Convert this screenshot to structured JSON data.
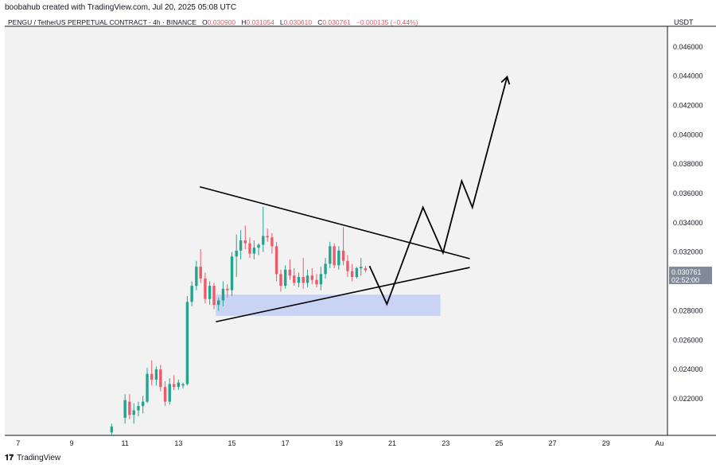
{
  "header": {
    "attribution": "boobahub created with TradingView.com, Jul 20, 2025 05:08 UTC"
  },
  "legend": {
    "symbol": "PENGU / TetherUS PERPETUAL CONTRACT · 4h · BINANCE",
    "o_label": "O",
    "o_value": "0.030900",
    "h_label": "H",
    "h_value": "0.031054",
    "l_label": "L",
    "l_value": "0.030610",
    "c_label": "C",
    "c_value": "0.030761",
    "change": "−0.000135 (−0.44%)"
  },
  "currency": "USDT",
  "footer": {
    "brand": "TradingView"
  },
  "last_price_tag": {
    "price": "0.030761",
    "countdown": "02:52:00"
  },
  "colors": {
    "up": "#22a58f",
    "down": "#ef5a6a",
    "zone": "#c9d4f5",
    "plot_bg": "#f2f2f2",
    "drawing": "#000000"
  },
  "chart_data": {
    "type": "candlestick",
    "title": "PENGU / TetherUS PERPETUAL CONTRACT · 4h · BINANCE",
    "ylim": [
      0.0195,
      0.0474
    ],
    "y_ticks": [
      "0.022000",
      "0.024000",
      "0.026000",
      "0.028000",
      "0.030000",
      "0.032000",
      "0.034000",
      "0.036000",
      "0.038000",
      "0.040000",
      "0.042000",
      "0.044000",
      "0.046000"
    ],
    "y_tick_values": [
      0.022,
      0.024,
      0.026,
      0.028,
      0.03,
      0.032,
      0.034,
      0.036,
      0.038,
      0.04,
      0.042,
      0.044,
      0.046
    ],
    "x_ticks": [
      {
        "label": "7",
        "day": 7
      },
      {
        "label": "9",
        "day": 9
      },
      {
        "label": "11",
        "day": 11
      },
      {
        "label": "13",
        "day": 13
      },
      {
        "label": "15",
        "day": 15
      },
      {
        "label": "17",
        "day": 17
      },
      {
        "label": "19",
        "day": 19
      },
      {
        "label": "21",
        "day": 21
      },
      {
        "label": "23",
        "day": 23
      },
      {
        "label": "25",
        "day": 25
      },
      {
        "label": "27",
        "day": 27
      },
      {
        "label": "29",
        "day": 29
      },
      {
        "label": "Au",
        "day": 31
      }
    ],
    "xlim_days": [
      6.5,
      31.3
    ],
    "candles": [
      {
        "d": 10.5,
        "o": 0.0197,
        "h": 0.0203,
        "l": 0.0195,
        "c": 0.0201
      },
      {
        "d": 11.0,
        "o": 0.0207,
        "h": 0.0223,
        "l": 0.0203,
        "c": 0.0219
      },
      {
        "d": 11.17,
        "o": 0.0218,
        "h": 0.0223,
        "l": 0.0206,
        "c": 0.0209
      },
      {
        "d": 11.33,
        "o": 0.0209,
        "h": 0.0217,
        "l": 0.0203,
        "c": 0.0212
      },
      {
        "d": 11.5,
        "o": 0.0212,
        "h": 0.0218,
        "l": 0.0208,
        "c": 0.0215
      },
      {
        "d": 11.67,
        "o": 0.0215,
        "h": 0.0222,
        "l": 0.021,
        "c": 0.0218
      },
      {
        "d": 11.83,
        "o": 0.0218,
        "h": 0.0241,
        "l": 0.0217,
        "c": 0.0237
      },
      {
        "d": 12.0,
        "o": 0.0237,
        "h": 0.0246,
        "l": 0.0229,
        "c": 0.0233
      },
      {
        "d": 12.17,
        "o": 0.0233,
        "h": 0.0242,
        "l": 0.0229,
        "c": 0.024
      },
      {
        "d": 12.33,
        "o": 0.024,
        "h": 0.0243,
        "l": 0.0225,
        "c": 0.0228
      },
      {
        "d": 12.5,
        "o": 0.0228,
        "h": 0.0232,
        "l": 0.0215,
        "c": 0.0218
      },
      {
        "d": 12.67,
        "o": 0.0218,
        "h": 0.0234,
        "l": 0.0216,
        "c": 0.023
      },
      {
        "d": 12.83,
        "o": 0.023,
        "h": 0.0236,
        "l": 0.0226,
        "c": 0.0228
      },
      {
        "d": 13.0,
        "o": 0.0228,
        "h": 0.0233,
        "l": 0.0226,
        "c": 0.0231
      },
      {
        "d": 13.17,
        "o": 0.0229,
        "h": 0.0231,
        "l": 0.0227,
        "c": 0.023
      },
      {
        "d": 13.33,
        "o": 0.023,
        "h": 0.029,
        "l": 0.0229,
        "c": 0.0286
      },
      {
        "d": 13.5,
        "o": 0.0286,
        "h": 0.03,
        "l": 0.0283,
        "c": 0.0297
      },
      {
        "d": 13.67,
        "o": 0.0297,
        "h": 0.0314,
        "l": 0.0294,
        "c": 0.031
      },
      {
        "d": 13.83,
        "o": 0.031,
        "h": 0.0322,
        "l": 0.0299,
        "c": 0.0302
      },
      {
        "d": 14.0,
        "o": 0.0302,
        "h": 0.0306,
        "l": 0.0285,
        "c": 0.0288
      },
      {
        "d": 14.17,
        "o": 0.0288,
        "h": 0.03,
        "l": 0.0284,
        "c": 0.0297
      },
      {
        "d": 14.33,
        "o": 0.0297,
        "h": 0.0299,
        "l": 0.0281,
        "c": 0.0284
      },
      {
        "d": 14.5,
        "o": 0.0284,
        "h": 0.0289,
        "l": 0.028,
        "c": 0.0287
      },
      {
        "d": 14.67,
        "o": 0.0287,
        "h": 0.03,
        "l": 0.0283,
        "c": 0.0295
      },
      {
        "d": 14.83,
        "o": 0.0295,
        "h": 0.0298,
        "l": 0.0289,
        "c": 0.0294
      },
      {
        "d": 15.0,
        "o": 0.0294,
        "h": 0.032,
        "l": 0.029,
        "c": 0.0317
      },
      {
        "d": 15.17,
        "o": 0.0317,
        "h": 0.0332,
        "l": 0.0303,
        "c": 0.0321
      },
      {
        "d": 15.33,
        "o": 0.0321,
        "h": 0.0335,
        "l": 0.0315,
        "c": 0.0328
      },
      {
        "d": 15.5,
        "o": 0.0328,
        "h": 0.0338,
        "l": 0.0322,
        "c": 0.0326
      },
      {
        "d": 15.67,
        "o": 0.0326,
        "h": 0.033,
        "l": 0.0316,
        "c": 0.0319
      },
      {
        "d": 15.83,
        "o": 0.0319,
        "h": 0.0328,
        "l": 0.0315,
        "c": 0.0323
      },
      {
        "d": 16.0,
        "o": 0.0323,
        "h": 0.0326,
        "l": 0.0318,
        "c": 0.0325
      },
      {
        "d": 16.17,
        "o": 0.0325,
        "h": 0.0351,
        "l": 0.032,
        "c": 0.0331
      },
      {
        "d": 16.33,
        "o": 0.0331,
        "h": 0.0336,
        "l": 0.0327,
        "c": 0.033
      },
      {
        "d": 16.5,
        "o": 0.033,
        "h": 0.0333,
        "l": 0.0319,
        "c": 0.0324
      },
      {
        "d": 16.67,
        "o": 0.0324,
        "h": 0.0327,
        "l": 0.03,
        "c": 0.0305
      },
      {
        "d": 16.83,
        "o": 0.0305,
        "h": 0.0308,
        "l": 0.0293,
        "c": 0.0297
      },
      {
        "d": 17.0,
        "o": 0.0297,
        "h": 0.0311,
        "l": 0.0295,
        "c": 0.0308
      },
      {
        "d": 17.17,
        "o": 0.0308,
        "h": 0.0315,
        "l": 0.0301,
        "c": 0.0304
      },
      {
        "d": 17.33,
        "o": 0.0304,
        "h": 0.0309,
        "l": 0.0297,
        "c": 0.0299
      },
      {
        "d": 17.5,
        "o": 0.0299,
        "h": 0.0306,
        "l": 0.0296,
        "c": 0.0303
      },
      {
        "d": 17.67,
        "o": 0.0303,
        "h": 0.0316,
        "l": 0.0295,
        "c": 0.0299
      },
      {
        "d": 17.83,
        "o": 0.0299,
        "h": 0.0308,
        "l": 0.0296,
        "c": 0.0304
      },
      {
        "d": 18.0,
        "o": 0.0304,
        "h": 0.0309,
        "l": 0.0298,
        "c": 0.0301
      },
      {
        "d": 18.17,
        "o": 0.0301,
        "h": 0.0305,
        "l": 0.0296,
        "c": 0.0298
      },
      {
        "d": 18.33,
        "o": 0.0298,
        "h": 0.031,
        "l": 0.0294,
        "c": 0.0305
      },
      {
        "d": 18.5,
        "o": 0.0305,
        "h": 0.0316,
        "l": 0.0302,
        "c": 0.0312
      },
      {
        "d": 18.67,
        "o": 0.0312,
        "h": 0.0327,
        "l": 0.0309,
        "c": 0.0324
      },
      {
        "d": 18.83,
        "o": 0.0324,
        "h": 0.0326,
        "l": 0.0309,
        "c": 0.0311
      },
      {
        "d": 19.0,
        "o": 0.0311,
        "h": 0.0324,
        "l": 0.0308,
        "c": 0.0321
      },
      {
        "d": 19.17,
        "o": 0.0321,
        "h": 0.0337,
        "l": 0.0311,
        "c": 0.0314
      },
      {
        "d": 19.33,
        "o": 0.0314,
        "h": 0.0318,
        "l": 0.0303,
        "c": 0.0307
      },
      {
        "d": 19.5,
        "o": 0.0307,
        "h": 0.0312,
        "l": 0.03,
        "c": 0.0303
      },
      {
        "d": 19.67,
        "o": 0.0303,
        "h": 0.031,
        "l": 0.0302,
        "c": 0.0309
      },
      {
        "d": 19.83,
        "o": 0.0309,
        "h": 0.0316,
        "l": 0.0304,
        "c": 0.031
      },
      {
        "d": 20.0,
        "o": 0.0309,
        "h": 0.031054,
        "l": 0.03061,
        "c": 0.030761
      }
    ],
    "zone": {
      "day_start": 14.4,
      "day_end": 22.8,
      "price_low": 0.02765,
      "price_high": 0.0291
    },
    "trendlines": [
      {
        "name": "upper-trendline",
        "d1": 13.8,
        "p1": 0.03645,
        "d2": 23.9,
        "p2": 0.03155
      },
      {
        "name": "lower-trendline",
        "d1": 14.4,
        "p1": 0.02725,
        "d2": 23.9,
        "p2": 0.03095
      }
    ],
    "projection_path": [
      {
        "d": 20.15,
        "p": 0.03105
      },
      {
        "d": 20.8,
        "p": 0.02845
      },
      {
        "d": 22.15,
        "p": 0.03505
      },
      {
        "d": 22.9,
        "p": 0.03195
      },
      {
        "d": 23.6,
        "p": 0.03685
      },
      {
        "d": 24.0,
        "p": 0.03505
      },
      {
        "d": 25.3,
        "p": 0.04395
      }
    ]
  }
}
